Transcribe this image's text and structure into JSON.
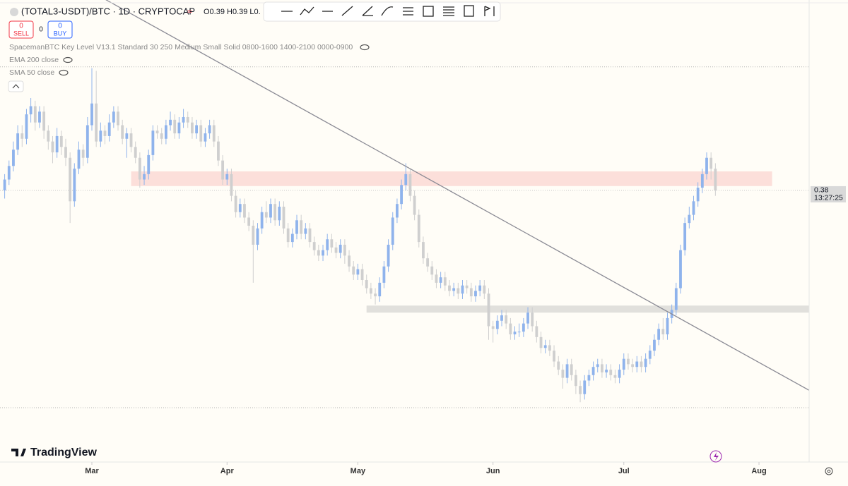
{
  "header": {
    "symbol": "(TOTAL3-USDT)/BTC · 1D · CRYPTOCAP",
    "ohlc": "O0.39 H0.39 L0.",
    "sell": {
      "count": "0",
      "label": "SELL"
    },
    "spread": "0",
    "buy": {
      "count": "0",
      "label": "BUY"
    },
    "indicators": [
      "SpacemanBTC Key Level V13.1 Standard 30 250 Medium Small Solid 0800-1600 1400-2100 0000-0900",
      "EMA 200 close",
      "SMA 50 close"
    ],
    "logo": "TradingView"
  },
  "chart_data": {
    "type": "candlestick",
    "xlim": [
      -1.07,
      184.5
    ],
    "ylim": [
      0.28,
      0.4501
    ],
    "xticks": [
      {
        "value": 20,
        "label": "Mar"
      },
      {
        "value": 51,
        "label": "Apr"
      },
      {
        "value": 81,
        "label": "May"
      },
      {
        "value": 112,
        "label": "Jun"
      },
      {
        "value": 142,
        "label": "Jul"
      },
      {
        "value": 173,
        "label": "Aug"
      }
    ],
    "up_color": "#8fb3ec",
    "down_color": "#cfcfcf",
    "current_price": 0.38,
    "countdown": "13:27:25",
    "levels": [
      0.4255,
      0.3
    ],
    "zones": [
      {
        "xlim": [
          29,
          176
        ],
        "ylim": [
          0.3816,
          0.387
        ],
        "color": "rgba(242,120,120,0.22)"
      },
      {
        "xlim": [
          83,
          184.5
        ],
        "ylim": [
          0.335,
          0.3376
        ],
        "color": "rgba(170,170,170,0.35)"
      }
    ],
    "trendline": {
      "x": [
        23.2,
        184.5
      ],
      "y": [
        0.4502,
        0.3064
      ],
      "color": "#8a8a94"
    },
    "ohlc": [
      [
        0.38,
        0.386,
        0.377,
        0.384
      ],
      [
        0.384,
        0.391,
        0.382,
        0.389
      ],
      [
        0.389,
        0.398,
        0.387,
        0.395
      ],
      [
        0.395,
        0.404,
        0.393,
        0.401
      ],
      [
        0.401,
        0.404,
        0.396,
        0.399
      ],
      [
        0.399,
        0.41,
        0.397,
        0.408
      ],
      [
        0.408,
        0.414,
        0.405,
        0.411
      ],
      [
        0.411,
        0.413,
        0.402,
        0.405
      ],
      [
        0.405,
        0.411,
        0.403,
        0.409
      ],
      [
        0.409,
        0.411,
        0.399,
        0.402
      ],
      [
        0.402,
        0.404,
        0.395,
        0.398
      ],
      [
        0.398,
        0.4,
        0.39,
        0.394
      ],
      [
        0.394,
        0.403,
        0.392,
        0.4
      ],
      [
        0.4,
        0.402,
        0.393,
        0.396
      ],
      [
        0.396,
        0.399,
        0.389,
        0.392
      ],
      [
        0.392,
        0.394,
        0.368,
        0.376
      ],
      [
        0.376,
        0.39,
        0.374,
        0.388
      ],
      [
        0.388,
        0.398,
        0.386,
        0.395
      ],
      [
        0.395,
        0.397,
        0.389,
        0.392
      ],
      [
        0.392,
        0.407,
        0.39,
        0.404
      ],
      [
        0.404,
        0.425,
        0.402,
        0.412
      ],
      [
        0.412,
        0.424,
        0.396,
        0.398
      ],
      [
        0.398,
        0.405,
        0.396,
        0.402
      ],
      [
        0.402,
        0.404,
        0.397,
        0.4
      ],
      [
        0.4,
        0.408,
        0.398,
        0.405
      ],
      [
        0.405,
        0.411,
        0.403,
        0.409
      ],
      [
        0.409,
        0.411,
        0.402,
        0.404
      ],
      [
        0.404,
        0.406,
        0.397,
        0.399
      ],
      [
        0.399,
        0.403,
        0.392,
        0.401
      ],
      [
        0.401,
        0.403,
        0.394,
        0.396
      ],
      [
        0.396,
        0.398,
        0.39,
        0.392
      ],
      [
        0.392,
        0.394,
        0.381,
        0.384
      ],
      [
        0.384,
        0.389,
        0.382,
        0.386
      ],
      [
        0.386,
        0.395,
        0.384,
        0.393
      ],
      [
        0.393,
        0.404,
        0.391,
        0.402
      ],
      [
        0.402,
        0.404,
        0.399,
        0.401
      ],
      [
        0.401,
        0.403,
        0.397,
        0.399
      ],
      [
        0.399,
        0.406,
        0.397,
        0.404
      ],
      [
        0.404,
        0.409,
        0.402,
        0.406
      ],
      [
        0.406,
        0.408,
        0.399,
        0.401
      ],
      [
        0.401,
        0.407,
        0.399,
        0.405
      ],
      [
        0.405,
        0.41,
        0.403,
        0.407
      ],
      [
        0.407,
        0.409,
        0.403,
        0.405
      ],
      [
        0.405,
        0.407,
        0.399,
        0.401
      ],
      [
        0.401,
        0.406,
        0.399,
        0.404
      ],
      [
        0.404,
        0.406,
        0.396,
        0.398
      ],
      [
        0.398,
        0.403,
        0.396,
        0.401
      ],
      [
        0.401,
        0.406,
        0.399,
        0.404
      ],
      [
        0.404,
        0.406,
        0.396,
        0.398
      ],
      [
        0.398,
        0.4,
        0.389,
        0.391
      ],
      [
        0.391,
        0.393,
        0.382,
        0.384
      ],
      [
        0.384,
        0.388,
        0.382,
        0.386
      ],
      [
        0.386,
        0.388,
        0.376,
        0.378
      ],
      [
        0.378,
        0.38,
        0.37,
        0.372
      ],
      [
        0.372,
        0.377,
        0.37,
        0.375
      ],
      [
        0.375,
        0.377,
        0.368,
        0.37
      ],
      [
        0.37,
        0.372,
        0.365,
        0.367
      ],
      [
        0.367,
        0.369,
        0.346,
        0.36
      ],
      [
        0.36,
        0.368,
        0.358,
        0.366
      ],
      [
        0.366,
        0.374,
        0.364,
        0.372
      ],
      [
        0.372,
        0.376,
        0.368,
        0.37
      ],
      [
        0.37,
        0.377,
        0.368,
        0.375
      ],
      [
        0.375,
        0.377,
        0.367,
        0.369
      ],
      [
        0.369,
        0.376,
        0.367,
        0.374
      ],
      [
        0.374,
        0.376,
        0.364,
        0.366
      ],
      [
        0.366,
        0.368,
        0.359,
        0.361
      ],
      [
        0.361,
        0.366,
        0.359,
        0.364
      ],
      [
        0.364,
        0.371,
        0.362,
        0.369
      ],
      [
        0.369,
        0.371,
        0.362,
        0.364
      ],
      [
        0.364,
        0.368,
        0.362,
        0.366
      ],
      [
        0.366,
        0.368,
        0.359,
        0.361
      ],
      [
        0.361,
        0.363,
        0.356,
        0.358
      ],
      [
        0.358,
        0.36,
        0.354,
        0.356
      ],
      [
        0.356,
        0.36,
        0.354,
        0.358
      ],
      [
        0.358,
        0.364,
        0.356,
        0.362
      ],
      [
        0.362,
        0.364,
        0.357,
        0.359
      ],
      [
        0.359,
        0.361,
        0.355,
        0.357
      ],
      [
        0.357,
        0.362,
        0.355,
        0.36
      ],
      [
        0.36,
        0.362,
        0.353,
        0.356
      ],
      [
        0.356,
        0.358,
        0.35,
        0.352
      ],
      [
        0.352,
        0.354,
        0.347,
        0.349
      ],
      [
        0.349,
        0.353,
        0.347,
        0.351
      ],
      [
        0.351,
        0.353,
        0.345,
        0.347
      ],
      [
        0.347,
        0.349,
        0.342,
        0.344
      ],
      [
        0.344,
        0.346,
        0.34,
        0.342
      ],
      [
        0.342,
        0.344,
        0.338,
        0.341
      ],
      [
        0.341,
        0.348,
        0.339,
        0.346
      ],
      [
        0.346,
        0.354,
        0.344,
        0.352
      ],
      [
        0.352,
        0.362,
        0.35,
        0.36
      ],
      [
        0.36,
        0.372,
        0.358,
        0.37
      ],
      [
        0.37,
        0.377,
        0.368,
        0.375
      ],
      [
        0.375,
        0.384,
        0.373,
        0.382
      ],
      [
        0.382,
        0.39,
        0.38,
        0.386
      ],
      [
        0.386,
        0.388,
        0.376,
        0.378
      ],
      [
        0.378,
        0.38,
        0.369,
        0.371
      ],
      [
        0.371,
        0.373,
        0.359,
        0.361
      ],
      [
        0.361,
        0.363,
        0.353,
        0.355
      ],
      [
        0.355,
        0.357,
        0.35,
        0.352
      ],
      [
        0.352,
        0.354,
        0.347,
        0.349
      ],
      [
        0.349,
        0.351,
        0.344,
        0.346
      ],
      [
        0.346,
        0.35,
        0.344,
        0.348
      ],
      [
        0.348,
        0.35,
        0.343,
        0.345
      ],
      [
        0.345,
        0.347,
        0.341,
        0.343
      ],
      [
        0.343,
        0.346,
        0.341,
        0.344
      ],
      [
        0.344,
        0.346,
        0.34,
        0.342
      ],
      [
        0.342,
        0.347,
        0.34,
        0.345
      ],
      [
        0.345,
        0.347,
        0.342,
        0.344
      ],
      [
        0.344,
        0.346,
        0.339,
        0.341
      ],
      [
        0.341,
        0.345,
        0.339,
        0.343
      ],
      [
        0.343,
        0.347,
        0.341,
        0.345
      ],
      [
        0.345,
        0.347,
        0.34,
        0.342
      ],
      [
        0.342,
        0.344,
        0.325,
        0.33
      ],
      [
        0.33,
        0.332,
        0.324,
        0.329
      ],
      [
        0.329,
        0.334,
        0.327,
        0.332
      ],
      [
        0.332,
        0.336,
        0.33,
        0.334
      ],
      [
        0.334,
        0.336,
        0.329,
        0.331
      ],
      [
        0.331,
        0.333,
        0.325,
        0.327
      ],
      [
        0.327,
        0.33,
        0.325,
        0.328
      ],
      [
        0.328,
        0.331,
        0.326,
        0.328
      ],
      [
        0.328,
        0.333,
        0.326,
        0.331
      ],
      [
        0.331,
        0.337,
        0.329,
        0.335
      ],
      [
        0.335,
        0.337,
        0.328,
        0.33
      ],
      [
        0.33,
        0.332,
        0.324,
        0.326
      ],
      [
        0.326,
        0.328,
        0.32,
        0.322
      ],
      [
        0.322,
        0.325,
        0.32,
        0.323
      ],
      [
        0.323,
        0.325,
        0.319,
        0.321
      ],
      [
        0.321,
        0.323,
        0.315,
        0.317
      ],
      [
        0.317,
        0.319,
        0.312,
        0.314
      ],
      [
        0.314,
        0.316,
        0.307,
        0.311
      ],
      [
        0.311,
        0.318,
        0.309,
        0.316
      ],
      [
        0.316,
        0.318,
        0.31,
        0.312
      ],
      [
        0.312,
        0.314,
        0.305,
        0.308
      ],
      [
        0.308,
        0.31,
        0.302,
        0.305
      ],
      [
        0.305,
        0.312,
        0.303,
        0.31
      ],
      [
        0.31,
        0.314,
        0.308,
        0.312
      ],
      [
        0.312,
        0.317,
        0.31,
        0.315
      ],
      [
        0.315,
        0.318,
        0.313,
        0.316
      ],
      [
        0.316,
        0.318,
        0.311,
        0.313
      ],
      [
        0.313,
        0.316,
        0.311,
        0.314
      ],
      [
        0.314,
        0.316,
        0.31,
        0.312
      ],
      [
        0.312,
        0.314,
        0.309,
        0.311
      ],
      [
        0.311,
        0.316,
        0.309,
        0.314
      ],
      [
        0.314,
        0.32,
        0.312,
        0.318
      ],
      [
        0.318,
        0.32,
        0.314,
        0.316
      ],
      [
        0.316,
        0.318,
        0.313,
        0.315
      ],
      [
        0.315,
        0.319,
        0.313,
        0.317
      ],
      [
        0.317,
        0.319,
        0.313,
        0.315
      ],
      [
        0.315,
        0.32,
        0.313,
        0.318
      ],
      [
        0.318,
        0.323,
        0.316,
        0.321
      ],
      [
        0.321,
        0.327,
        0.319,
        0.325
      ],
      [
        0.325,
        0.331,
        0.323,
        0.329
      ],
      [
        0.329,
        0.333,
        0.325,
        0.327
      ],
      [
        0.327,
        0.335,
        0.325,
        0.333
      ],
      [
        0.333,
        0.338,
        0.331,
        0.336
      ],
      [
        0.336,
        0.346,
        0.334,
        0.344
      ],
      [
        0.344,
        0.36,
        0.342,
        0.358
      ],
      [
        0.358,
        0.37,
        0.356,
        0.368
      ],
      [
        0.368,
        0.374,
        0.366,
        0.371
      ],
      [
        0.371,
        0.378,
        0.369,
        0.376
      ],
      [
        0.376,
        0.383,
        0.374,
        0.381
      ],
      [
        0.381,
        0.388,
        0.379,
        0.386
      ],
      [
        0.386,
        0.394,
        0.384,
        0.392
      ],
      [
        0.392,
        0.394,
        0.384,
        0.388
      ],
      [
        0.388,
        0.39,
        0.378,
        0.38
      ]
    ]
  }
}
